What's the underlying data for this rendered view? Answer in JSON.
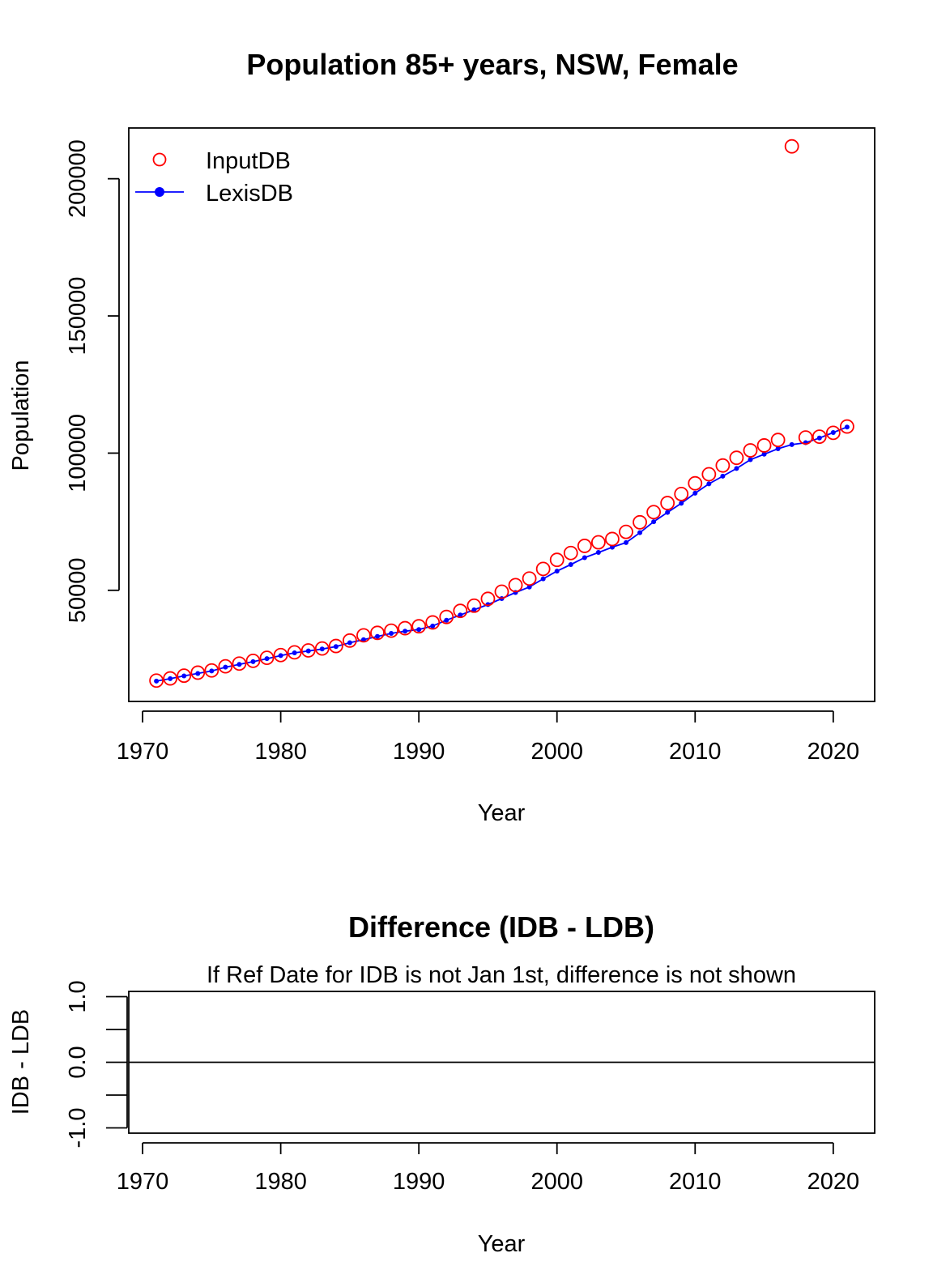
{
  "chart_data": [
    {
      "type": "line",
      "title": "Population 85+ years, NSW, Female",
      "xlabel": "Year",
      "ylabel": "Population",
      "xlim": [
        1969,
        2023
      ],
      "ylim": [
        9500,
        218500
      ],
      "xticks": [
        1970,
        1980,
        1990,
        2000,
        2010,
        2020
      ],
      "yticks": [
        50000,
        100000,
        150000,
        200000
      ],
      "grid": false,
      "legend": {
        "position": "top-left",
        "entries": [
          "InputDB",
          "LexisDB"
        ]
      },
      "series": [
        {
          "name": "InputDB",
          "style": "open-circle",
          "color": "#ff0000",
          "x": [
            1971,
            1972,
            1973,
            1974,
            1975,
            1976,
            1977,
            1978,
            1979,
            1980,
            1981,
            1982,
            1983,
            1984,
            1985,
            1986,
            1987,
            1988,
            1989,
            1990,
            1991,
            1992,
            1993,
            1994,
            1995,
            1996,
            1997,
            1998,
            1999,
            2000,
            2001,
            2002,
            2003,
            2004,
            2005,
            2006,
            2007,
            2008,
            2009,
            2010,
            2011,
            2012,
            2013,
            2014,
            2015,
            2016,
            2017,
            2018,
            2019,
            2020,
            2021
          ],
          "y": [
            17100,
            17900,
            18900,
            20000,
            20800,
            22300,
            23300,
            24300,
            25400,
            26400,
            27400,
            28100,
            28800,
            29700,
            31700,
            33600,
            34500,
            35300,
            36200,
            36900,
            38300,
            40300,
            42500,
            44400,
            46900,
            49500,
            51900,
            54300,
            57800,
            61100,
            63600,
            66200,
            67500,
            68700,
            71300,
            74800,
            78500,
            81800,
            85100,
            89000,
            92300,
            95500,
            98300,
            101000,
            102800,
            104800,
            211800,
            105700,
            106000,
            107400,
            109700
          ]
        },
        {
          "name": "LexisDB",
          "style": "line-dot",
          "color": "#0000ff",
          "x": [
            1971,
            1972,
            1973,
            1974,
            1975,
            1976,
            1977,
            1978,
            1979,
            1980,
            1981,
            1982,
            1983,
            1984,
            1985,
            1986,
            1987,
            1988,
            1989,
            1990,
            1991,
            1992,
            1993,
            1994,
            1995,
            1996,
            1997,
            1998,
            1999,
            2000,
            2001,
            2002,
            2003,
            2004,
            2005,
            2006,
            2007,
            2008,
            2009,
            2010,
            2011,
            2012,
            2013,
            2014,
            2015,
            2016,
            2017,
            2018,
            2019,
            2020,
            2021
          ],
          "y": [
            16900,
            17800,
            18800,
            19700,
            20600,
            22000,
            23000,
            24000,
            25100,
            26200,
            27200,
            27900,
            28600,
            29500,
            30900,
            32000,
            33200,
            34300,
            35100,
            35700,
            37000,
            39100,
            41000,
            42900,
            44800,
            47000,
            49200,
            51200,
            54200,
            57000,
            59400,
            61900,
            63800,
            65700,
            67400,
            71000,
            75000,
            78400,
            81700,
            85400,
            88800,
            91600,
            94400,
            97600,
            99600,
            101600,
            103100,
            103800,
            105500,
            107500,
            109500
          ]
        }
      ]
    },
    {
      "type": "line",
      "title": "Difference (IDB - LDB)",
      "subtitle": "If Ref Date for IDB is not Jan 1st, difference is not shown",
      "xlabel": "Year",
      "ylabel": "IDB - LDB",
      "xlim": [
        1969,
        2023
      ],
      "ylim": [
        -1.08,
        1.08
      ],
      "xticks": [
        1970,
        1980,
        1990,
        2000,
        2010,
        2020
      ],
      "yticks": [
        -1.0,
        -0.5,
        0.0,
        0.5,
        1.0
      ],
      "ytick_labels": [
        "-1.0",
        "",
        "0.0",
        "",
        "1.0"
      ],
      "hline": 0,
      "grid": false
    }
  ]
}
